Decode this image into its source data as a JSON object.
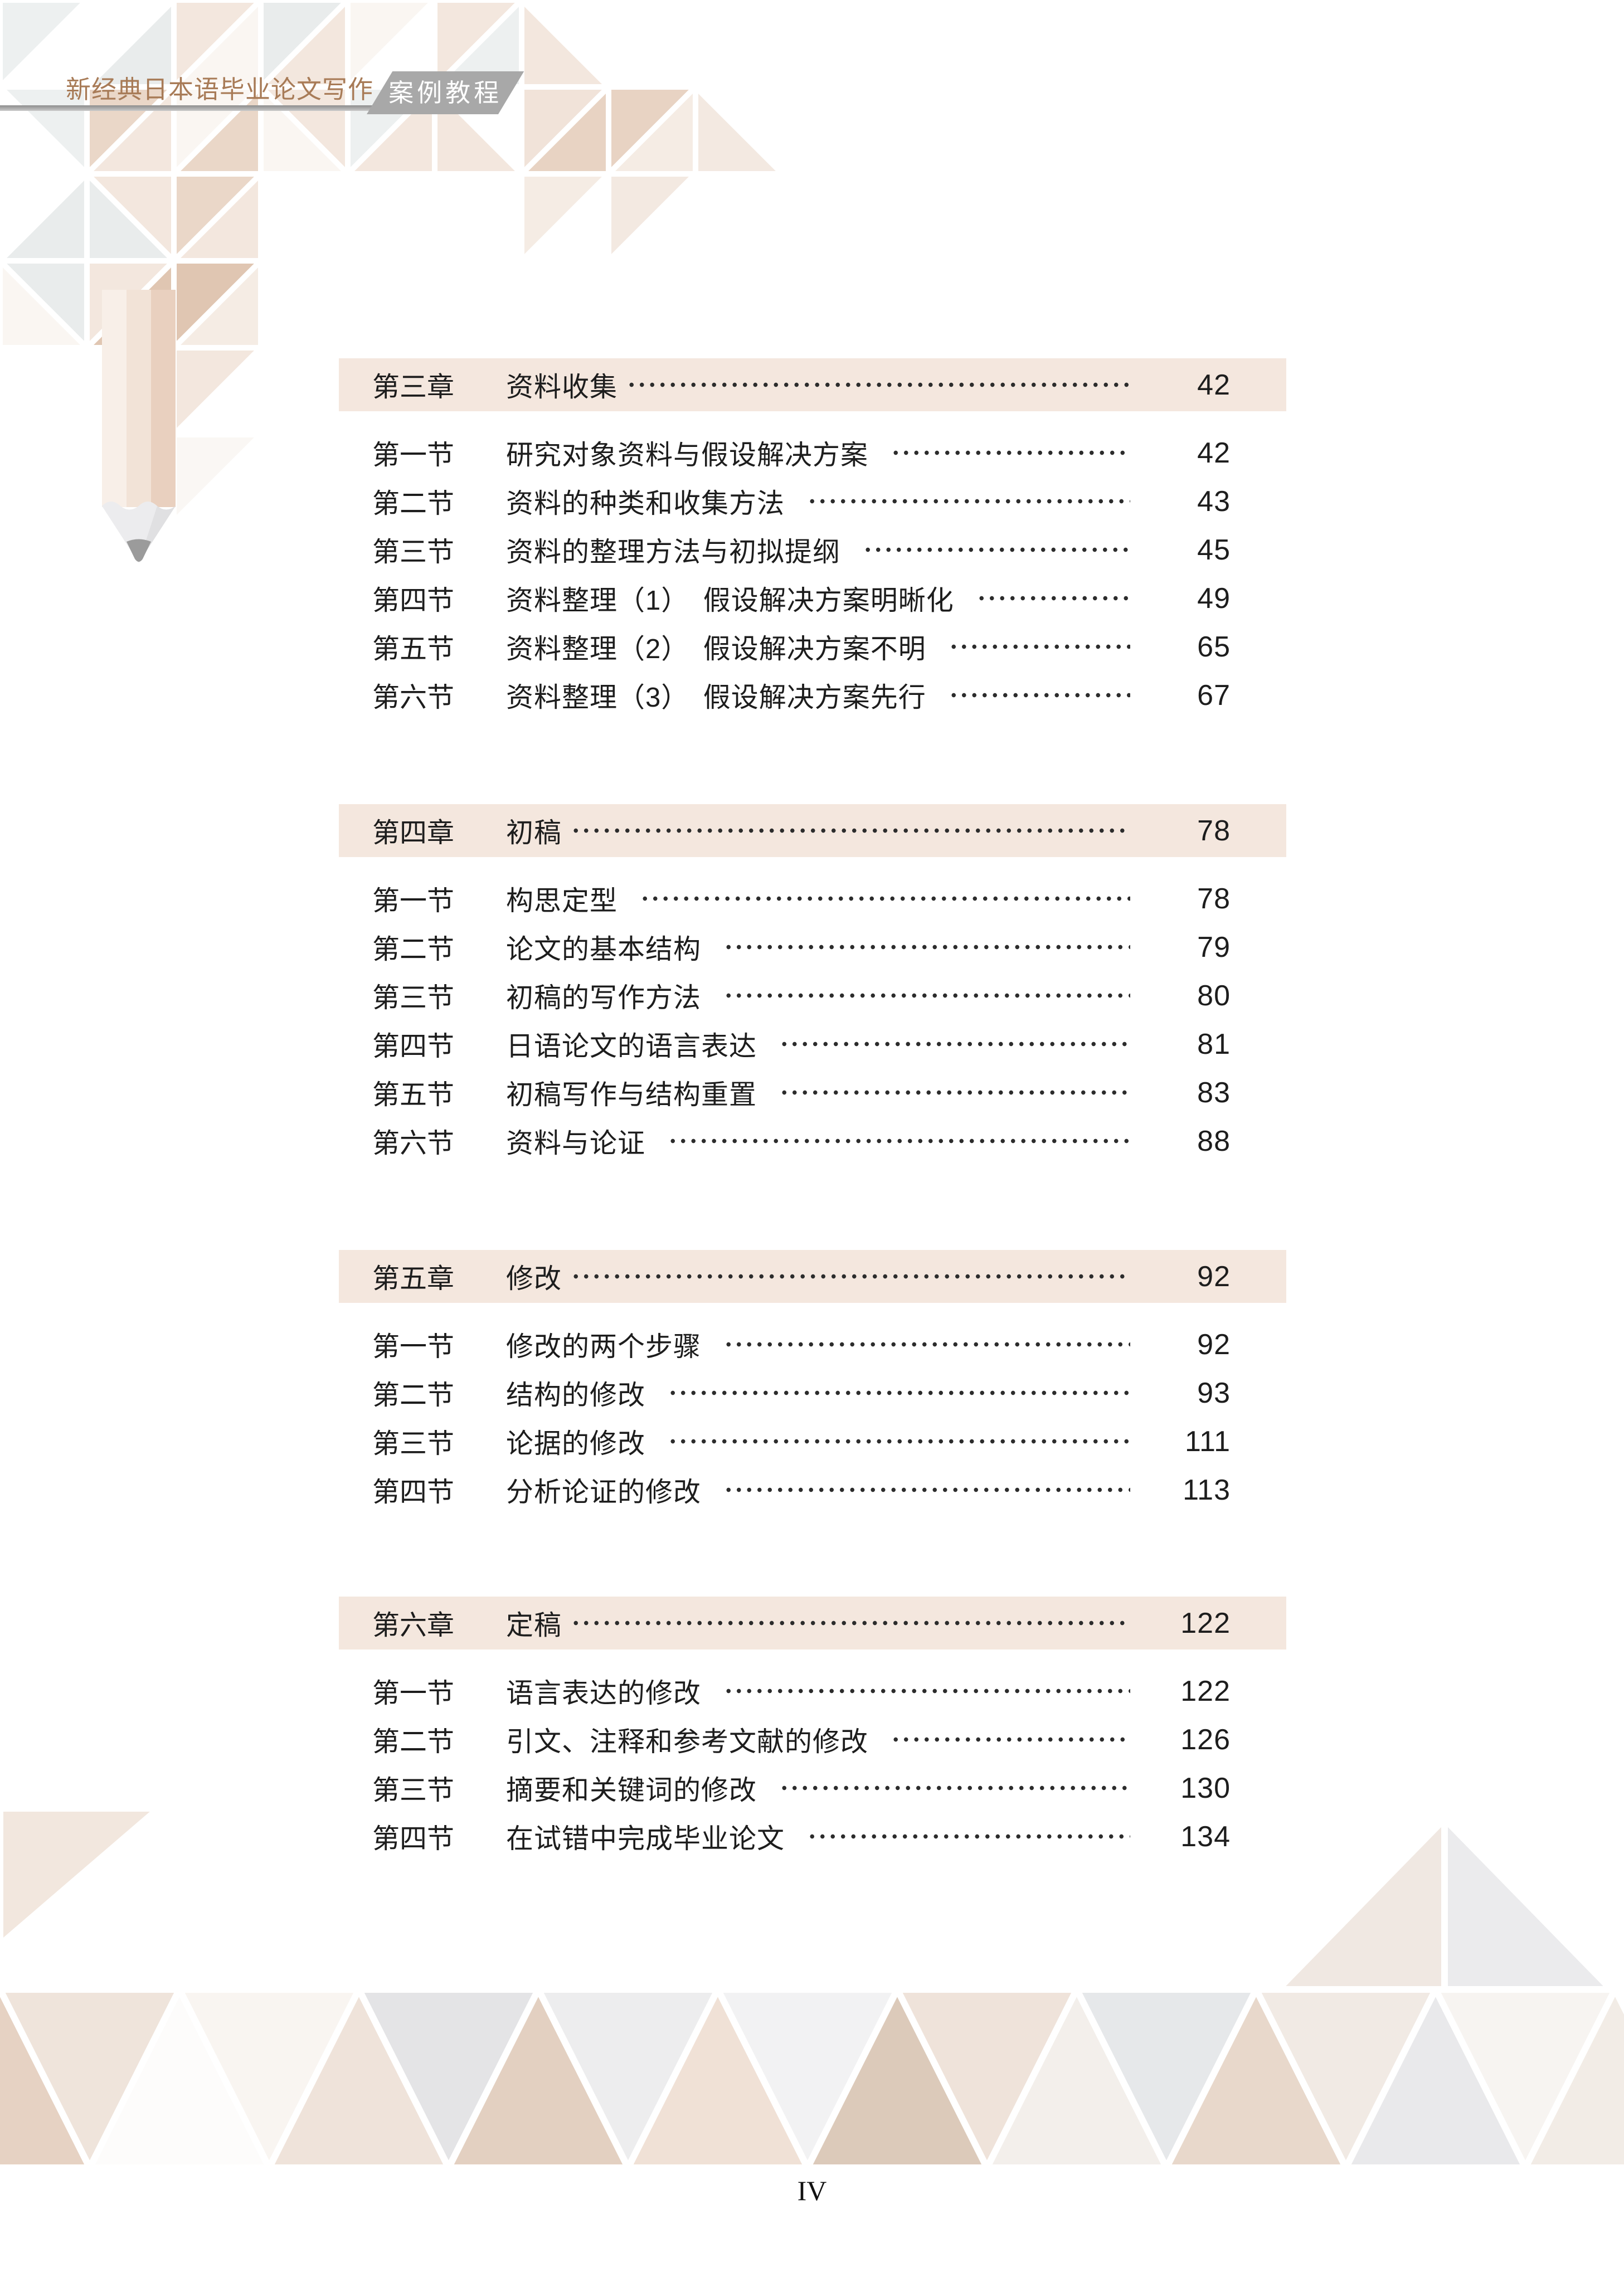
{
  "header": {
    "series_title": "新经典日本语毕业论文写作",
    "badge_label": "案例教程"
  },
  "toc": {
    "chapters": [
      {
        "label": "第三章",
        "title": "资料收集",
        "page": "42",
        "sections": [
          {
            "label": "第一节",
            "title": "研究对象资料与假设解决方案",
            "page": "42"
          },
          {
            "label": "第二节",
            "title": "资料的种类和收集方法",
            "page": "43"
          },
          {
            "label": "第三节",
            "title": "资料的整理方法与初拟提纲",
            "page": "45"
          },
          {
            "label": "第四节",
            "title": "资料整理（1）　假设解决方案明晰化",
            "page": "49"
          },
          {
            "label": "第五节",
            "title": "资料整理（2）　假设解决方案不明",
            "page": "65"
          },
          {
            "label": "第六节",
            "title": "资料整理（3）　假设解决方案先行",
            "page": "67"
          }
        ]
      },
      {
        "label": "第四章",
        "title": "初稿",
        "page": "78",
        "sections": [
          {
            "label": "第一节",
            "title": "构思定型",
            "page": "78"
          },
          {
            "label": "第二节",
            "title": "论文的基本结构",
            "page": "79"
          },
          {
            "label": "第三节",
            "title": "初稿的写作方法",
            "page": "80"
          },
          {
            "label": "第四节",
            "title": "日语论文的语言表达",
            "page": "81"
          },
          {
            "label": "第五节",
            "title": "初稿写作与结构重置",
            "page": "83"
          },
          {
            "label": "第六节",
            "title": "资料与论证",
            "page": "88"
          }
        ]
      },
      {
        "label": "第五章",
        "title": "修改",
        "page": "92",
        "sections": [
          {
            "label": "第一节",
            "title": "修改的两个步骤",
            "page": "92"
          },
          {
            "label": "第二节",
            "title": "结构的修改",
            "page": "93"
          },
          {
            "label": "第三节",
            "title": "论据的修改",
            "page": "111"
          },
          {
            "label": "第四节",
            "title": "分析论证的修改",
            "page": "113"
          }
        ]
      },
      {
        "label": "第六章",
        "title": "定稿",
        "page": "122",
        "sections": [
          {
            "label": "第一节",
            "title": "语言表达的修改",
            "page": "122"
          },
          {
            "label": "第二节",
            "title": "引文、注释和参考文献的修改",
            "page": "126"
          },
          {
            "label": "第三节",
            "title": "摘要和关键词的修改",
            "page": "130"
          },
          {
            "label": "第四节",
            "title": "在试错中完成毕业论文",
            "page": "134"
          }
        ]
      }
    ]
  },
  "footer": {
    "page_number": "IV"
  },
  "colors": {
    "chapter_bar_bg": "#f4e7de",
    "series_title_brown": "#a87b57",
    "badge_gray": "#a8a8a8",
    "text": "#1d1d1d"
  }
}
